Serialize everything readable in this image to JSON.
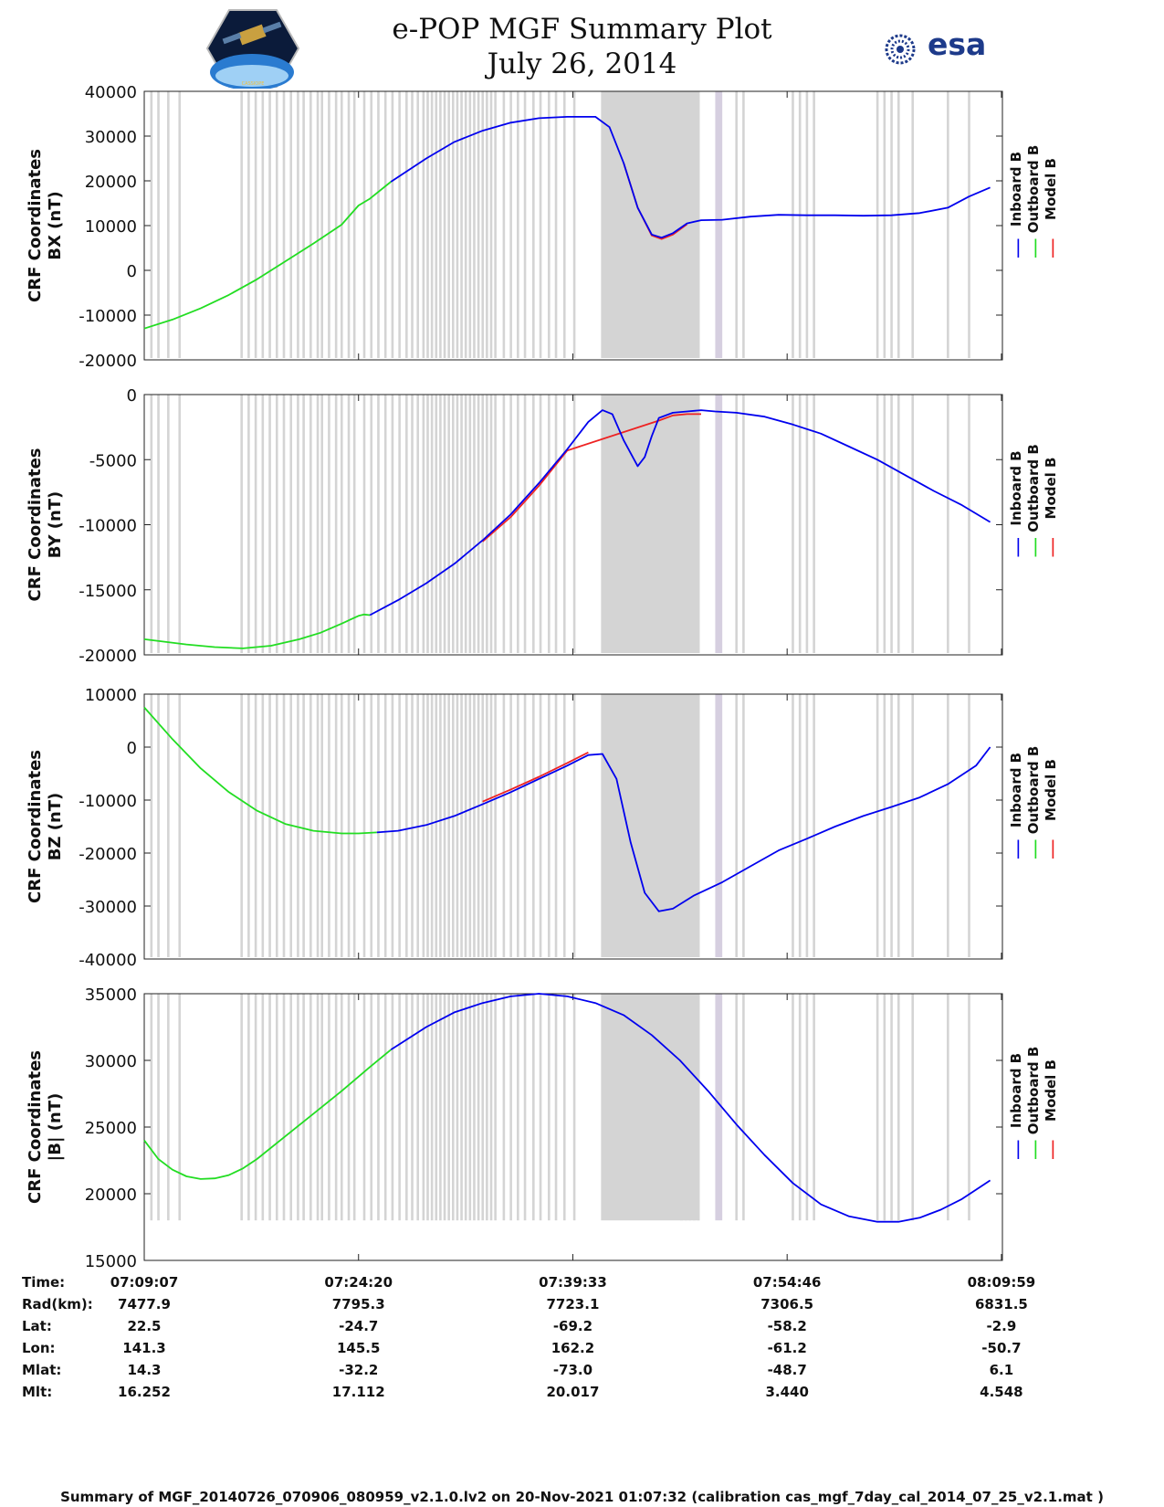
{
  "header": {
    "title": "e-POP MGF Summary Plot",
    "date": "July 26, 2014",
    "left_logo_label": "CASSIOPE",
    "right_logo_label": "esa"
  },
  "colors": {
    "inboard": "#0000ee",
    "outboard": "#22dd22",
    "model": "#ee2222",
    "gap_bar": "#d4d4d4",
    "gap_bar_alt": "#d6cfe0"
  },
  "legend": {
    "labels": [
      "Inboard B",
      "Outboard B",
      "Model B"
    ],
    "markers": [
      "|",
      "|",
      "|"
    ]
  },
  "chart_data": [
    {
      "type": "line",
      "title": "",
      "xlabel": "",
      "ylabel": "CRF Coordinates\nBX (nT)",
      "ylabel_lines": [
        "CRF Coordinates",
        "BX (nT)"
      ],
      "ylim": [
        -20000,
        40000
      ],
      "yticks": [
        -20000,
        -10000,
        0,
        10000,
        20000,
        30000,
        40000
      ],
      "x_minutes": [
        0,
        2,
        4,
        6,
        8,
        10,
        12,
        14,
        16,
        18,
        20,
        22,
        24,
        26,
        28,
        30,
        32,
        34,
        36,
        38,
        40,
        42,
        44,
        46,
        48,
        50,
        52,
        54,
        56,
        58,
        60
      ],
      "series": [
        {
          "name": "Outboard B",
          "x_minutes": [
            0,
            2,
            4,
            6,
            8,
            10,
            12,
            14,
            15.2,
            16,
            17.5
          ],
          "values": [
            -13000,
            -11000,
            -8500,
            -5500,
            -2000,
            2000,
            6000,
            10200,
            14500,
            16000,
            19800
          ]
        },
        {
          "name": "Inboard B",
          "x_minutes": [
            17.5,
            20,
            22,
            24,
            26,
            28,
            30,
            32,
            33,
            34,
            35,
            36,
            36.7,
            37.5,
            38.5,
            39.5,
            41,
            43,
            45,
            47,
            49,
            51,
            53,
            55,
            57,
            58.5,
            60
          ],
          "values": [
            19800,
            25000,
            28700,
            31200,
            33000,
            34000,
            34300,
            34300,
            32000,
            24000,
            14000,
            8000,
            7300,
            8300,
            10500,
            11200,
            11300,
            12000,
            12400,
            12300,
            12300,
            12200,
            12300,
            12800,
            14000,
            16500,
            18500
          ]
        },
        {
          "name": "Model B",
          "x_minutes": [
            34,
            35,
            36,
            36.7,
            37.5,
            38.5
          ],
          "values": [
            24000,
            14000,
            7800,
            7000,
            8000,
            10300
          ]
        }
      ]
    },
    {
      "type": "line",
      "ylabel": "CRF Coordinates\nBY (nT)",
      "ylabel_lines": [
        "CRF Coordinates",
        "BY (nT)"
      ],
      "ylim": [
        -20000,
        0
      ],
      "yticks": [
        -20000,
        -15000,
        -10000,
        -5000,
        0
      ],
      "series": [
        {
          "name": "Outboard B",
          "x_minutes": [
            0,
            3,
            5,
            7,
            9,
            11,
            12.5,
            14,
            15.2,
            15.6,
            16
          ],
          "values": [
            -18800,
            -19200,
            -19400,
            -19500,
            -19300,
            -18800,
            -18300,
            -17600,
            -17000,
            -16900,
            -16950
          ]
        },
        {
          "name": "Inboard B",
          "x_minutes": [
            16,
            18,
            20,
            22,
            24,
            26,
            28,
            30,
            31.5,
            32.5,
            33.2,
            34,
            35,
            35.5,
            36,
            36.5,
            37.5,
            38.5,
            39.5,
            40.5,
            42,
            44,
            46,
            48,
            50,
            52,
            54,
            56,
            58,
            60
          ],
          "values": [
            -16950,
            -15800,
            -14500,
            -13000,
            -11200,
            -9200,
            -6800,
            -4200,
            -2100,
            -1200,
            -1500,
            -3500,
            -5500,
            -4800,
            -3200,
            -1800,
            -1400,
            -1300,
            -1200,
            -1300,
            -1400,
            -1700,
            -2300,
            -3000,
            -4000,
            -5000,
            -6200,
            -7400,
            -8500,
            -9800
          ]
        },
        {
          "name": "Model B",
          "x_minutes": [
            24,
            26,
            28,
            30,
            36.5,
            37.5,
            38.5,
            39.5
          ],
          "values": [
            -11300,
            -9400,
            -7000,
            -4300,
            -2000,
            -1600,
            -1500,
            -1500
          ]
        }
      ]
    },
    {
      "type": "line",
      "ylabel": "CRF Coordinates\nBZ (nT)",
      "ylabel_lines": [
        "CRF Coordinates",
        "BZ (nT)"
      ],
      "ylim": [
        -40000,
        10000
      ],
      "yticks": [
        -40000,
        -30000,
        -20000,
        -10000,
        0,
        10000
      ],
      "series": [
        {
          "name": "Outboard B",
          "x_minutes": [
            0,
            2,
            4,
            6,
            8,
            10,
            12,
            14,
            15.2,
            16.5
          ],
          "values": [
            7500,
            1500,
            -4000,
            -8500,
            -12000,
            -14500,
            -15800,
            -16300,
            -16300,
            -16100
          ]
        },
        {
          "name": "Inboard B",
          "x_minutes": [
            16.5,
            18,
            20,
            22,
            24,
            26,
            28,
            30,
            31.5,
            32.5,
            33.5,
            34.5,
            35.5,
            36.5,
            37.5,
            39,
            41,
            43,
            45,
            47,
            49,
            51,
            53,
            55,
            57,
            59,
            60
          ],
          "values": [
            -16100,
            -15800,
            -14700,
            -13000,
            -10800,
            -8500,
            -6000,
            -3500,
            -1500,
            -1300,
            -6000,
            -18000,
            -27500,
            -31000,
            -30500,
            -28000,
            -25500,
            -22500,
            -19500,
            -17300,
            -15000,
            -13000,
            -11300,
            -9500,
            -7000,
            -3500,
            0
          ]
        },
        {
          "name": "Model B",
          "x_minutes": [
            24,
            26,
            28,
            30,
            31.5
          ],
          "values": [
            -10300,
            -8000,
            -5600,
            -3000,
            -1000
          ]
        }
      ]
    },
    {
      "type": "line",
      "ylabel": "CRF Coordinates\n|B| (nT)",
      "ylabel_lines": [
        "CRF Coordinates",
        "|B| (nT)"
      ],
      "ylim": [
        15000,
        35000
      ],
      "yticks": [
        15000,
        20000,
        25000,
        30000,
        35000
      ],
      "series": [
        {
          "name": "Outboard B",
          "x_minutes": [
            0,
            1,
            2,
            3,
            4,
            5,
            6,
            7,
            8,
            10,
            12,
            14,
            16,
            17.5
          ],
          "values": [
            24000,
            22600,
            21800,
            21300,
            21100,
            21150,
            21400,
            21900,
            22600,
            24300,
            26000,
            27700,
            29500,
            30800
          ]
        },
        {
          "name": "Inboard B",
          "x_minutes": [
            17.5,
            20,
            22,
            24,
            26,
            28,
            30,
            32,
            34,
            36,
            38,
            40,
            42,
            44,
            46,
            48,
            50,
            52,
            53.5,
            55,
            56.5,
            58,
            59,
            60
          ],
          "values": [
            30800,
            32500,
            33600,
            34300,
            34800,
            35000,
            34800,
            34300,
            33400,
            31900,
            30000,
            27700,
            25200,
            22900,
            20800,
            19200,
            18300,
            17900,
            17900,
            18200,
            18800,
            19600,
            20300,
            21000
          ]
        }
      ]
    }
  ],
  "x_axis": {
    "ticks_minutes": [
      0,
      15.2,
      30.4,
      45.6,
      60.8
    ],
    "tick_labels": [
      "07:09:07",
      "07:24:20",
      "07:39:33",
      "07:54:46",
      "08:09:59"
    ]
  },
  "gaps": {
    "thin_minutes": [
      0.5,
      1.0,
      1.7,
      2.5,
      6.9,
      7.4,
      7.9,
      8.4,
      8.9,
      9.4,
      9.9,
      10.4,
      10.9,
      11.3,
      11.8,
      12.3,
      12.6,
      13.1,
      13.6,
      14.0,
      14.5,
      14.9,
      15.6,
      16.1,
      16.6,
      17.1,
      17.6,
      18.1,
      18.6,
      19.0,
      19.4,
      19.8,
      20.1,
      20.4,
      20.7,
      21.0,
      21.3,
      21.6,
      21.9,
      22.2,
      22.5,
      22.8,
      23.1,
      23.4,
      23.7,
      24.0,
      24.3,
      24.6,
      24.9,
      25.5,
      26.0,
      26.5,
      27.0,
      27.6,
      28.1,
      28.7,
      29.2,
      29.8,
      30.5,
      38.1,
      38.4,
      38.7,
      39.0,
      39.3,
      42.0,
      42.5,
      46.0,
      46.5,
      47.0,
      47.5,
      52.0,
      52.5,
      53.0,
      53.5,
      54.5,
      57.0,
      58.5
    ],
    "blocks_minutes": [
      [
        32.4,
        39.4
      ],
      [
        40.5,
        41.0
      ]
    ]
  },
  "ephemeris": {
    "row_labels": [
      "Time:",
      "Rad(km):",
      "Lat:",
      "Lon:",
      "Mlat:",
      "Mlt:"
    ],
    "columns": [
      [
        "07:09:07",
        "7477.9",
        "22.5",
        "141.3",
        "14.3",
        "16.252"
      ],
      [
        "07:24:20",
        "7795.3",
        "-24.7",
        "145.5",
        "-32.2",
        "17.112"
      ],
      [
        "07:39:33",
        "7723.1",
        "-69.2",
        "162.2",
        "-73.0",
        "20.017"
      ],
      [
        "07:54:46",
        "7306.5",
        "-58.2",
        "-61.2",
        "-48.7",
        "3.440"
      ],
      [
        "08:09:59",
        "6831.5",
        "-2.9",
        "-50.7",
        "6.1",
        "4.548"
      ]
    ]
  },
  "footer": "Summary of MGF_20140726_070906_080959_v2.1.0.lv2 on 20-Nov-2021 01:07:32 (calibration cas_mgf_7day_cal_2014_07_25_v2.1.mat )"
}
